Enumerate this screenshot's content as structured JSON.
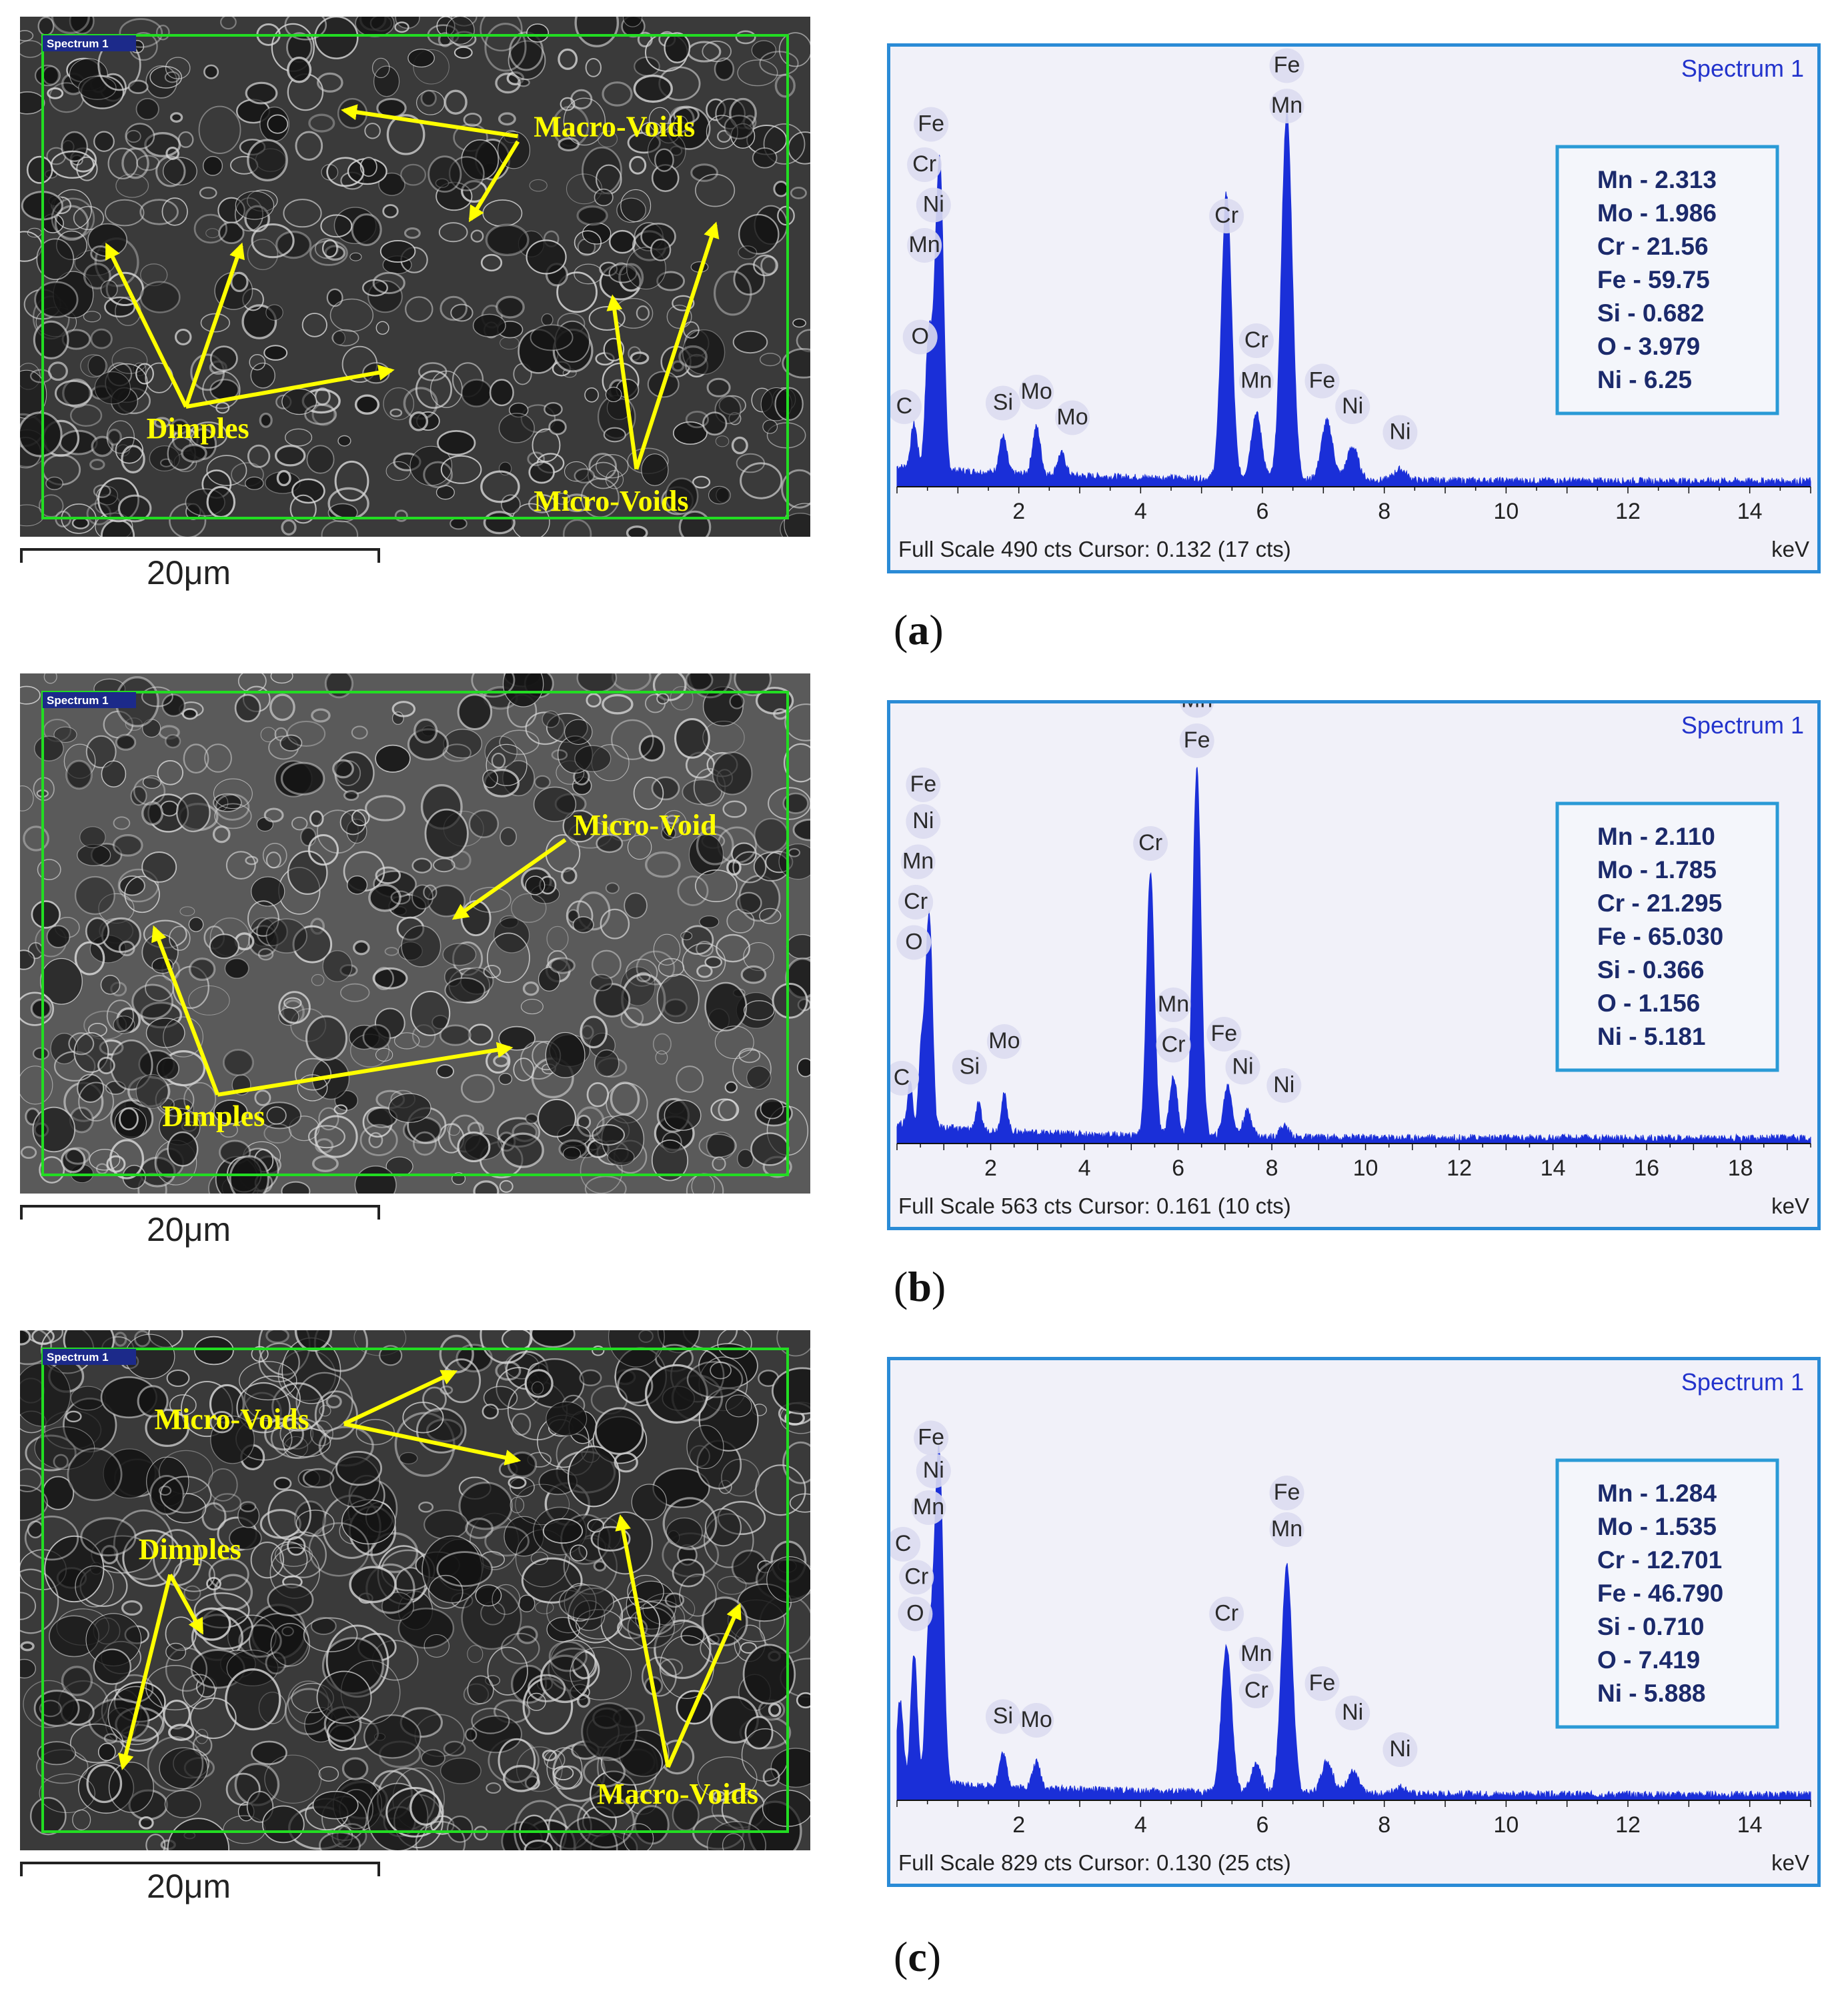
{
  "panels": [
    {
      "caption_letter": "a",
      "sem": {
        "spectrum_tag": "Spectrum 1",
        "scale_label": "20μm",
        "annotations": [
          {
            "text": "Macro-Voids",
            "tx": 0.65,
            "ty": 0.23,
            "arrows": [
              [
                0.63,
                0.23,
                0.41,
                0.18
              ],
              [
                0.63,
                0.24,
                0.57,
                0.39
              ]
            ]
          },
          {
            "text": "Dimples",
            "tx": 0.16,
            "ty": 0.81,
            "arrows": [
              [
                0.21,
                0.75,
                0.11,
                0.44
              ],
              [
                0.21,
                0.75,
                0.28,
                0.44
              ],
              [
                0.21,
                0.75,
                0.47,
                0.68
              ]
            ]
          },
          {
            "text": "Micro-Voids",
            "tx": 0.65,
            "ty": 0.95,
            "arrows": [
              [
                0.78,
                0.87,
                0.75,
                0.54
              ],
              [
                0.78,
                0.87,
                0.88,
                0.4
              ]
            ]
          }
        ]
      },
      "spectrum": {
        "title": "Spectrum 1",
        "footer": "Full Scale 490 cts Cursor: 0.132  (17 cts)",
        "unit": "keV",
        "xmax": 15,
        "xticks": [
          2,
          4,
          6,
          8,
          10,
          12,
          14
        ],
        "peaks": [
          [
            0.28,
            0.12
          ],
          [
            0.52,
            0.35
          ],
          [
            0.64,
            0.4
          ],
          [
            0.72,
            0.68
          ],
          [
            1.74,
            0.1
          ],
          [
            2.29,
            0.13
          ],
          [
            2.7,
            0.06
          ],
          [
            5.41,
            0.78
          ],
          [
            5.9,
            0.18
          ],
          [
            6.4,
            1.0
          ],
          [
            7.06,
            0.16
          ],
          [
            7.48,
            0.09
          ],
          [
            8.26,
            0.03
          ]
        ],
        "labels": [
          {
            "t": "Fe",
            "x": 0.56,
            "h": 0.97
          },
          {
            "t": "Cr",
            "x": 0.45,
            "h": 0.86
          },
          {
            "t": "Ni",
            "x": 0.6,
            "h": 0.75
          },
          {
            "t": "Mn",
            "x": 0.45,
            "h": 0.64
          },
          {
            "t": "O",
            "x": 0.38,
            "h": 0.39
          },
          {
            "t": "C",
            "x": 0.12,
            "h": 0.2
          },
          {
            "t": "Si",
            "x": 1.74,
            "h": 0.21
          },
          {
            "t": "Mo",
            "x": 2.29,
            "h": 0.24
          },
          {
            "t": "Mo",
            "x": 2.88,
            "h": 0.17
          },
          {
            "t": "Cr",
            "x": 5.41,
            "h": 0.72
          },
          {
            "t": "Fe",
            "x": 6.4,
            "h": 1.13
          },
          {
            "t": "Mn",
            "x": 6.4,
            "h": 1.02
          },
          {
            "t": "Cr",
            "x": 5.9,
            "h": 0.38
          },
          {
            "t": "Mn",
            "x": 5.9,
            "h": 0.27
          },
          {
            "t": "Fe",
            "x": 6.98,
            "h": 0.27
          },
          {
            "t": "Ni",
            "x": 7.48,
            "h": 0.2
          },
          {
            "t": "Ni",
            "x": 8.26,
            "h": 0.13
          }
        ],
        "composition": [
          "Mn - 2.313",
          "Mo - 1.986",
          "Cr - 21.56",
          "Fe - 59.75",
          "Si - 0.682",
          "O - 3.979",
          "Ni - 6.25"
        ]
      }
    },
    {
      "caption_letter": "b",
      "sem": {
        "spectrum_tag": "Spectrum 1",
        "scale_label": "20μm",
        "annotations": [
          {
            "text": "Micro-Void",
            "tx": 0.7,
            "ty": 0.31,
            "arrows": [
              [
                0.69,
                0.32,
                0.55,
                0.47
              ]
            ]
          },
          {
            "text": "Dimples",
            "tx": 0.18,
            "ty": 0.87,
            "arrows": [
              [
                0.25,
                0.81,
                0.17,
                0.49
              ],
              [
                0.25,
                0.81,
                0.62,
                0.72
              ]
            ]
          }
        ]
      },
      "spectrum": {
        "title": "Spectrum 1",
        "footer": "Full Scale 563 cts Cursor: 0.161  (10 cts)",
        "unit": "keV",
        "xmax": 19.5,
        "xticks": [
          2,
          4,
          6,
          8,
          10,
          12,
          14,
          16,
          18
        ],
        "peaks": [
          [
            0.28,
            0.12
          ],
          [
            0.52,
            0.22
          ],
          [
            0.64,
            0.36
          ],
          [
            0.72,
            0.4
          ],
          [
            1.74,
            0.07
          ],
          [
            2.29,
            0.1
          ],
          [
            5.41,
            0.72
          ],
          [
            5.9,
            0.16
          ],
          [
            6.4,
            1.0
          ],
          [
            7.06,
            0.14
          ],
          [
            7.48,
            0.07
          ],
          [
            8.26,
            0.03
          ]
        ],
        "labels": [
          {
            "t": "Fe",
            "x": 0.56,
            "h": 0.96
          },
          {
            "t": "Ni",
            "x": 0.56,
            "h": 0.86
          },
          {
            "t": "Mn",
            "x": 0.45,
            "h": 0.75
          },
          {
            "t": "Cr",
            "x": 0.4,
            "h": 0.64
          },
          {
            "t": "O",
            "x": 0.36,
            "h": 0.53
          },
          {
            "t": "C",
            "x": 0.1,
            "h": 0.16
          },
          {
            "t": "Si",
            "x": 1.55,
            "h": 0.19
          },
          {
            "t": "Mo",
            "x": 2.29,
            "h": 0.26
          },
          {
            "t": "Cr",
            "x": 5.41,
            "h": 0.8
          },
          {
            "t": "Mn",
            "x": 6.4,
            "h": 1.19
          },
          {
            "t": "Fe",
            "x": 6.4,
            "h": 1.08
          },
          {
            "t": "Mn",
            "x": 5.9,
            "h": 0.36
          },
          {
            "t": "Cr",
            "x": 5.9,
            "h": 0.25
          },
          {
            "t": "Fe",
            "x": 6.98,
            "h": 0.28
          },
          {
            "t": "Ni",
            "x": 7.38,
            "h": 0.19
          },
          {
            "t": "Ni",
            "x": 8.26,
            "h": 0.14
          }
        ],
        "composition": [
          "Mn - 2.110",
          "Mo - 1.785",
          "Cr - 21.295",
          "Fe - 65.030",
          "Si - 0.366",
          "O - 1.156",
          "Ni - 5.181"
        ]
      }
    },
    {
      "caption_letter": "c",
      "sem": {
        "spectrum_tag": "Spectrum 1",
        "scale_label": "20μm",
        "annotations": [
          {
            "text": "Micro-Voids",
            "tx": 0.17,
            "ty": 0.19,
            "arrows": [
              [
                0.41,
                0.18,
                0.55,
                0.08
              ],
              [
                0.41,
                0.18,
                0.63,
                0.25
              ]
            ]
          },
          {
            "text": "Dimples",
            "tx": 0.15,
            "ty": 0.44,
            "arrows": [
              [
                0.19,
                0.47,
                0.13,
                0.84
              ],
              [
                0.19,
                0.47,
                0.23,
                0.58
              ]
            ]
          },
          {
            "text": "Macro-Voids",
            "tx": 0.73,
            "ty": 0.91,
            "arrows": [
              [
                0.82,
                0.84,
                0.76,
                0.36
              ],
              [
                0.82,
                0.84,
                0.91,
                0.53
              ]
            ]
          }
        ]
      },
      "spectrum": {
        "title": "Spectrum 1",
        "footer": "Full Scale 829 cts Cursor: 0.130  (25 cts)",
        "unit": "keV",
        "xmax": 15,
        "xticks": [
          2,
          4,
          6,
          8,
          10,
          12,
          14
        ],
        "peaks": [
          [
            0.05,
            0.22
          ],
          [
            0.28,
            0.35
          ],
          [
            0.52,
            0.4
          ],
          [
            0.64,
            0.55
          ],
          [
            0.72,
            0.65
          ],
          [
            1.74,
            0.09
          ],
          [
            2.29,
            0.07
          ],
          [
            5.41,
            0.4
          ],
          [
            5.9,
            0.08
          ],
          [
            6.4,
            0.62
          ],
          [
            7.06,
            0.09
          ],
          [
            7.48,
            0.06
          ],
          [
            8.26,
            0.02
          ]
        ],
        "labels": [
          {
            "t": "Fe",
            "x": 0.56,
            "h": 0.97
          },
          {
            "t": "Ni",
            "x": 0.6,
            "h": 0.88
          },
          {
            "t": "Mn",
            "x": 0.52,
            "h": 0.78
          },
          {
            "t": "C",
            "x": 0.1,
            "h": 0.68
          },
          {
            "t": "Cr",
            "x": 0.32,
            "h": 0.59
          },
          {
            "t": "O",
            "x": 0.3,
            "h": 0.49
          },
          {
            "t": "Si",
            "x": 1.74,
            "h": 0.21
          },
          {
            "t": "Mo",
            "x": 2.29,
            "h": 0.2
          },
          {
            "t": "Cr",
            "x": 5.41,
            "h": 0.49
          },
          {
            "t": "Fe",
            "x": 6.4,
            "h": 0.82
          },
          {
            "t": "Mn",
            "x": 6.4,
            "h": 0.72
          },
          {
            "t": "Mn",
            "x": 5.9,
            "h": 0.38
          },
          {
            "t": "Cr",
            "x": 5.9,
            "h": 0.28
          },
          {
            "t": "Fe",
            "x": 6.98,
            "h": 0.3
          },
          {
            "t": "Ni",
            "x": 7.48,
            "h": 0.22
          },
          {
            "t": "Ni",
            "x": 8.26,
            "h": 0.12
          }
        ],
        "composition": [
          "Mn - 1.284",
          "Mo - 1.535",
          "Cr - 12.701",
          "Fe - 46.790",
          "Si - 0.710",
          "O - 7.419",
          "Ni - 5.888"
        ]
      }
    }
  ],
  "chart_data": [
    {
      "type": "line",
      "title": "Spectrum 1",
      "xlabel": "keV",
      "xlim": [
        0,
        15
      ],
      "footer": "Full Scale 490 cts Cursor: 0.132  (17 cts)",
      "peaks": [
        {
          "element": "Fe",
          "x": 6.4
        },
        {
          "element": "Cr",
          "x": 5.41
        },
        {
          "element": "Mn",
          "x": 5.9
        },
        {
          "element": "Fe",
          "x": 7.06
        },
        {
          "element": "Ni",
          "x": 7.48
        },
        {
          "element": "Si",
          "x": 1.74
        },
        {
          "element": "Mo",
          "x": 2.29
        }
      ],
      "composition": {
        "Mn": 2.313,
        "Mo": 1.986,
        "Cr": 21.56,
        "Fe": 59.75,
        "Si": 0.682,
        "O": 3.979,
        "Ni": 6.25
      }
    },
    {
      "type": "line",
      "title": "Spectrum 1",
      "xlabel": "keV",
      "xlim": [
        0,
        19.5
      ],
      "footer": "Full Scale 563 cts Cursor: 0.161  (10 cts)",
      "peaks": [
        {
          "element": "Mn/Fe",
          "x": 6.4
        },
        {
          "element": "Cr",
          "x": 5.41
        },
        {
          "element": "Mn",
          "x": 5.9
        },
        {
          "element": "Fe",
          "x": 7.06
        },
        {
          "element": "Ni",
          "x": 7.48
        },
        {
          "element": "Si",
          "x": 1.74
        },
        {
          "element": "Mo",
          "x": 2.29
        }
      ],
      "composition": {
        "Mn": 2.11,
        "Mo": 1.785,
        "Cr": 21.295,
        "Fe": 65.03,
        "Si": 0.366,
        "O": 1.156,
        "Ni": 5.181
      }
    },
    {
      "type": "line",
      "title": "Spectrum 1",
      "xlabel": "keV",
      "xlim": [
        0,
        15
      ],
      "footer": "Full Scale 829 cts Cursor: 0.130  (25 cts)",
      "peaks": [
        {
          "element": "Fe",
          "x": 6.4
        },
        {
          "element": "Cr",
          "x": 5.41
        },
        {
          "element": "Mn",
          "x": 5.9
        },
        {
          "element": "Fe",
          "x": 7.06
        },
        {
          "element": "Ni",
          "x": 7.48
        },
        {
          "element": "Si",
          "x": 1.74
        },
        {
          "element": "Mo",
          "x": 2.29
        }
      ],
      "composition": {
        "Mn": 1.284,
        "Mo": 1.535,
        "Cr": 12.701,
        "Fe": 46.79,
        "Si": 0.71,
        "O": 7.419,
        "Ni": 5.888
      }
    }
  ]
}
